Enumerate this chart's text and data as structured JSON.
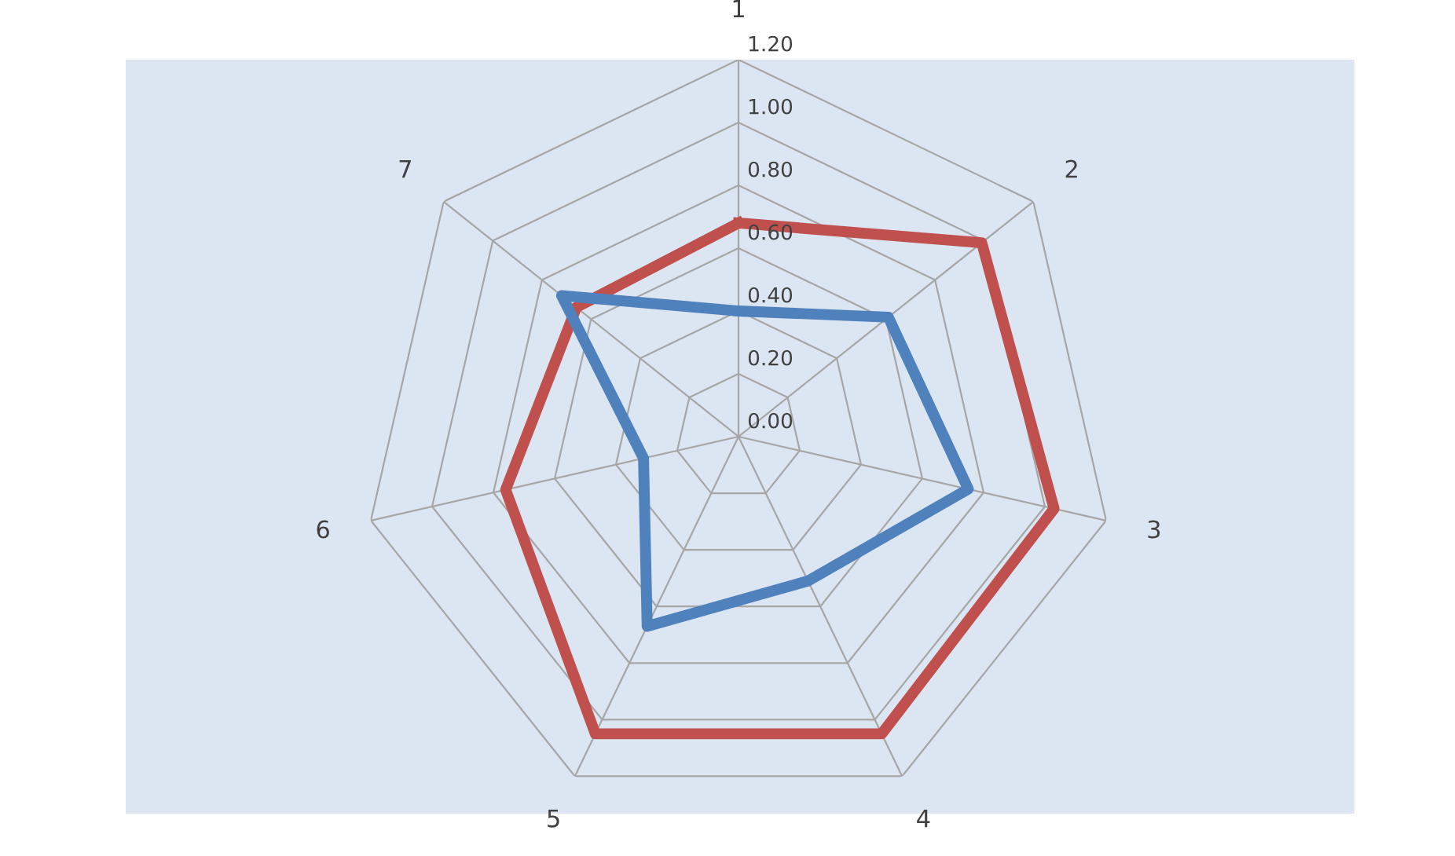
{
  "chart_data": {
    "type": "radar",
    "categories": [
      "1",
      "2",
      "3",
      "4",
      "5",
      "6",
      "7"
    ],
    "series": [
      {
        "color": "#c0504d",
        "values": [
          0.68,
          0.99,
          1.03,
          1.05,
          1.05,
          0.76,
          0.66
        ]
      },
      {
        "color": "#4f81bd",
        "values": [
          0.4,
          0.61,
          0.75,
          0.51,
          0.67,
          0.31,
          0.72
        ]
      }
    ],
    "ylim": [
      0,
      1.2
    ],
    "yticks": [
      {
        "value": 0,
        "label": "0.00"
      },
      {
        "value": 0.2,
        "label": "0.20"
      },
      {
        "value": 0.4,
        "label": "0.40"
      },
      {
        "value": 0.6,
        "label": "0.60"
      },
      {
        "value": 0.8,
        "label": "0.80"
      },
      {
        "value": 1.0,
        "label": "1.00"
      },
      {
        "value": 1.2,
        "label": "1.20"
      }
    ],
    "grid": true,
    "marker": "none",
    "line_style": "solid"
  }
}
